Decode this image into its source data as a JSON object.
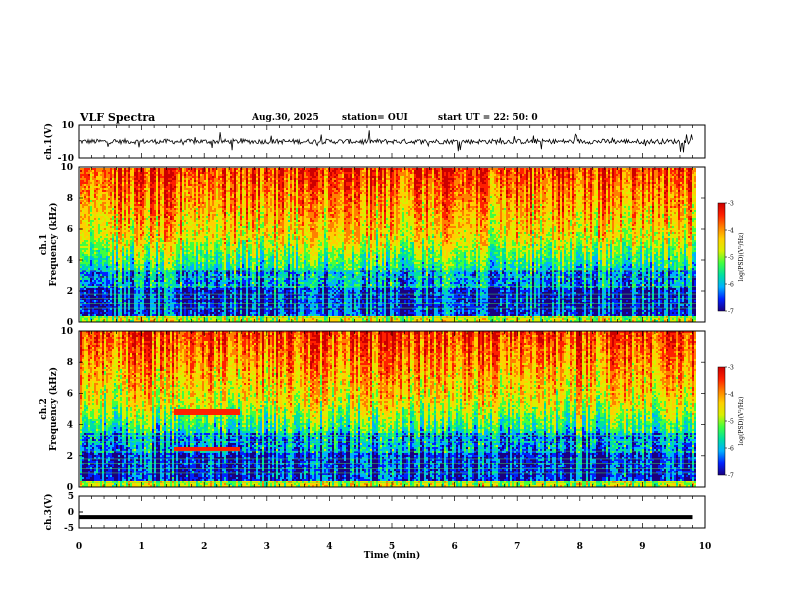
{
  "header": {
    "title": "VLF Spectra",
    "date": "Aug.30, 2025",
    "station": "station= OUI",
    "start": "start  UT =   22: 50: 0"
  },
  "colors": {
    "colormap": [
      "#1a0080",
      "#0022ff",
      "#00b0ff",
      "#00e0a0",
      "#40ff40",
      "#d8f000",
      "#ffd000",
      "#ff8000",
      "#ff2000",
      "#cc0000"
    ],
    "trace": "#000000"
  },
  "chart_data": [
    {
      "type": "line",
      "ylabel": "ch.1(V)",
      "ylim": [
        -10,
        10
      ],
      "yticks": [
        "10",
        "-10"
      ],
      "grid": false,
      "baseline_v": 0,
      "noise_amplitude_v": 1.5
    },
    {
      "type": "heatmap",
      "ylabel": "ch.1\nFrequency (kHz)",
      "ylim": [
        0,
        10
      ],
      "yticks": [
        "0",
        "2",
        "4",
        "6",
        "8",
        "10"
      ],
      "xlim": [
        0,
        10
      ],
      "colorbar": {
        "label": "log(PSD)(V²/Hz)",
        "range": [
          -7,
          -3
        ],
        "ticks": [
          "-3",
          "-4",
          "-5",
          "-6",
          "-7"
        ]
      }
    },
    {
      "type": "heatmap",
      "ylabel": "ch.2\nFrequency (kHz)",
      "ylim": [
        0,
        10
      ],
      "yticks": [
        "0",
        "2",
        "4",
        "6",
        "8",
        "10"
      ],
      "xlim": [
        0,
        10
      ],
      "colorbar": {
        "label": "log(PSD)(V²/Hz)",
        "range": [
          -7,
          -3
        ],
        "ticks": [
          "-3",
          "-4",
          "-5",
          "-6",
          "-7"
        ]
      },
      "annotations": [
        {
          "type": "band",
          "t_start_min": 1.5,
          "t_end_min": 2.5,
          "freq_khz": 4.8
        },
        {
          "type": "band",
          "t_start_min": 1.5,
          "t_end_min": 2.5,
          "freq_khz": 2.4
        }
      ]
    },
    {
      "type": "line",
      "ylabel": "ch.3(V)",
      "ylim": [
        -5,
        5
      ],
      "yticks": [
        "5",
        "0",
        "-5"
      ],
      "xlabel": "Time (min)",
      "xlim": [
        0,
        10
      ],
      "xticks": [
        "0",
        "1",
        "2",
        "3",
        "4",
        "5",
        "6",
        "7",
        "8",
        "9",
        "10"
      ],
      "series": [
        {
          "x": [
            0,
            9.8
          ],
          "y": [
            -1.6,
            -1.6
          ]
        }
      ]
    }
  ]
}
